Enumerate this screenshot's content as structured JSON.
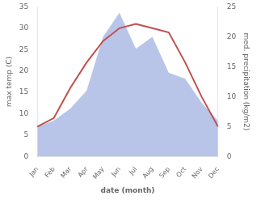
{
  "chart_data": {
    "type": "line",
    "categories": [
      "Jan",
      "Feb",
      "Mar",
      "Apr",
      "May",
      "Jun",
      "Jul",
      "Aug",
      "Sep",
      "Oct",
      "Nov",
      "Dec"
    ],
    "series": [
      {
        "type": "area",
        "axis": "y2",
        "color": "#b8c4e8",
        "values": [
          5,
          6,
          8,
          11,
          20,
          24,
          18,
          20,
          14,
          13,
          9,
          6
        ]
      },
      {
        "type": "line",
        "color": "#c0504d",
        "values": [
          7,
          9,
          16,
          22,
          27,
          30,
          31,
          30,
          29,
          22,
          14,
          7
        ]
      }
    ],
    "xlabel": "date (month)",
    "ylabel": "max temp (C)",
    "y2label": "med. precipitation (kg/m2)",
    "ylim": [
      0,
      35
    ],
    "yticks": [
      0,
      5,
      10,
      15,
      20,
      25,
      30,
      35
    ],
    "y2lim": [
      0,
      25
    ],
    "y2ticks": [
      0,
      5,
      10,
      15,
      20,
      25
    ],
    "grid": false
  }
}
